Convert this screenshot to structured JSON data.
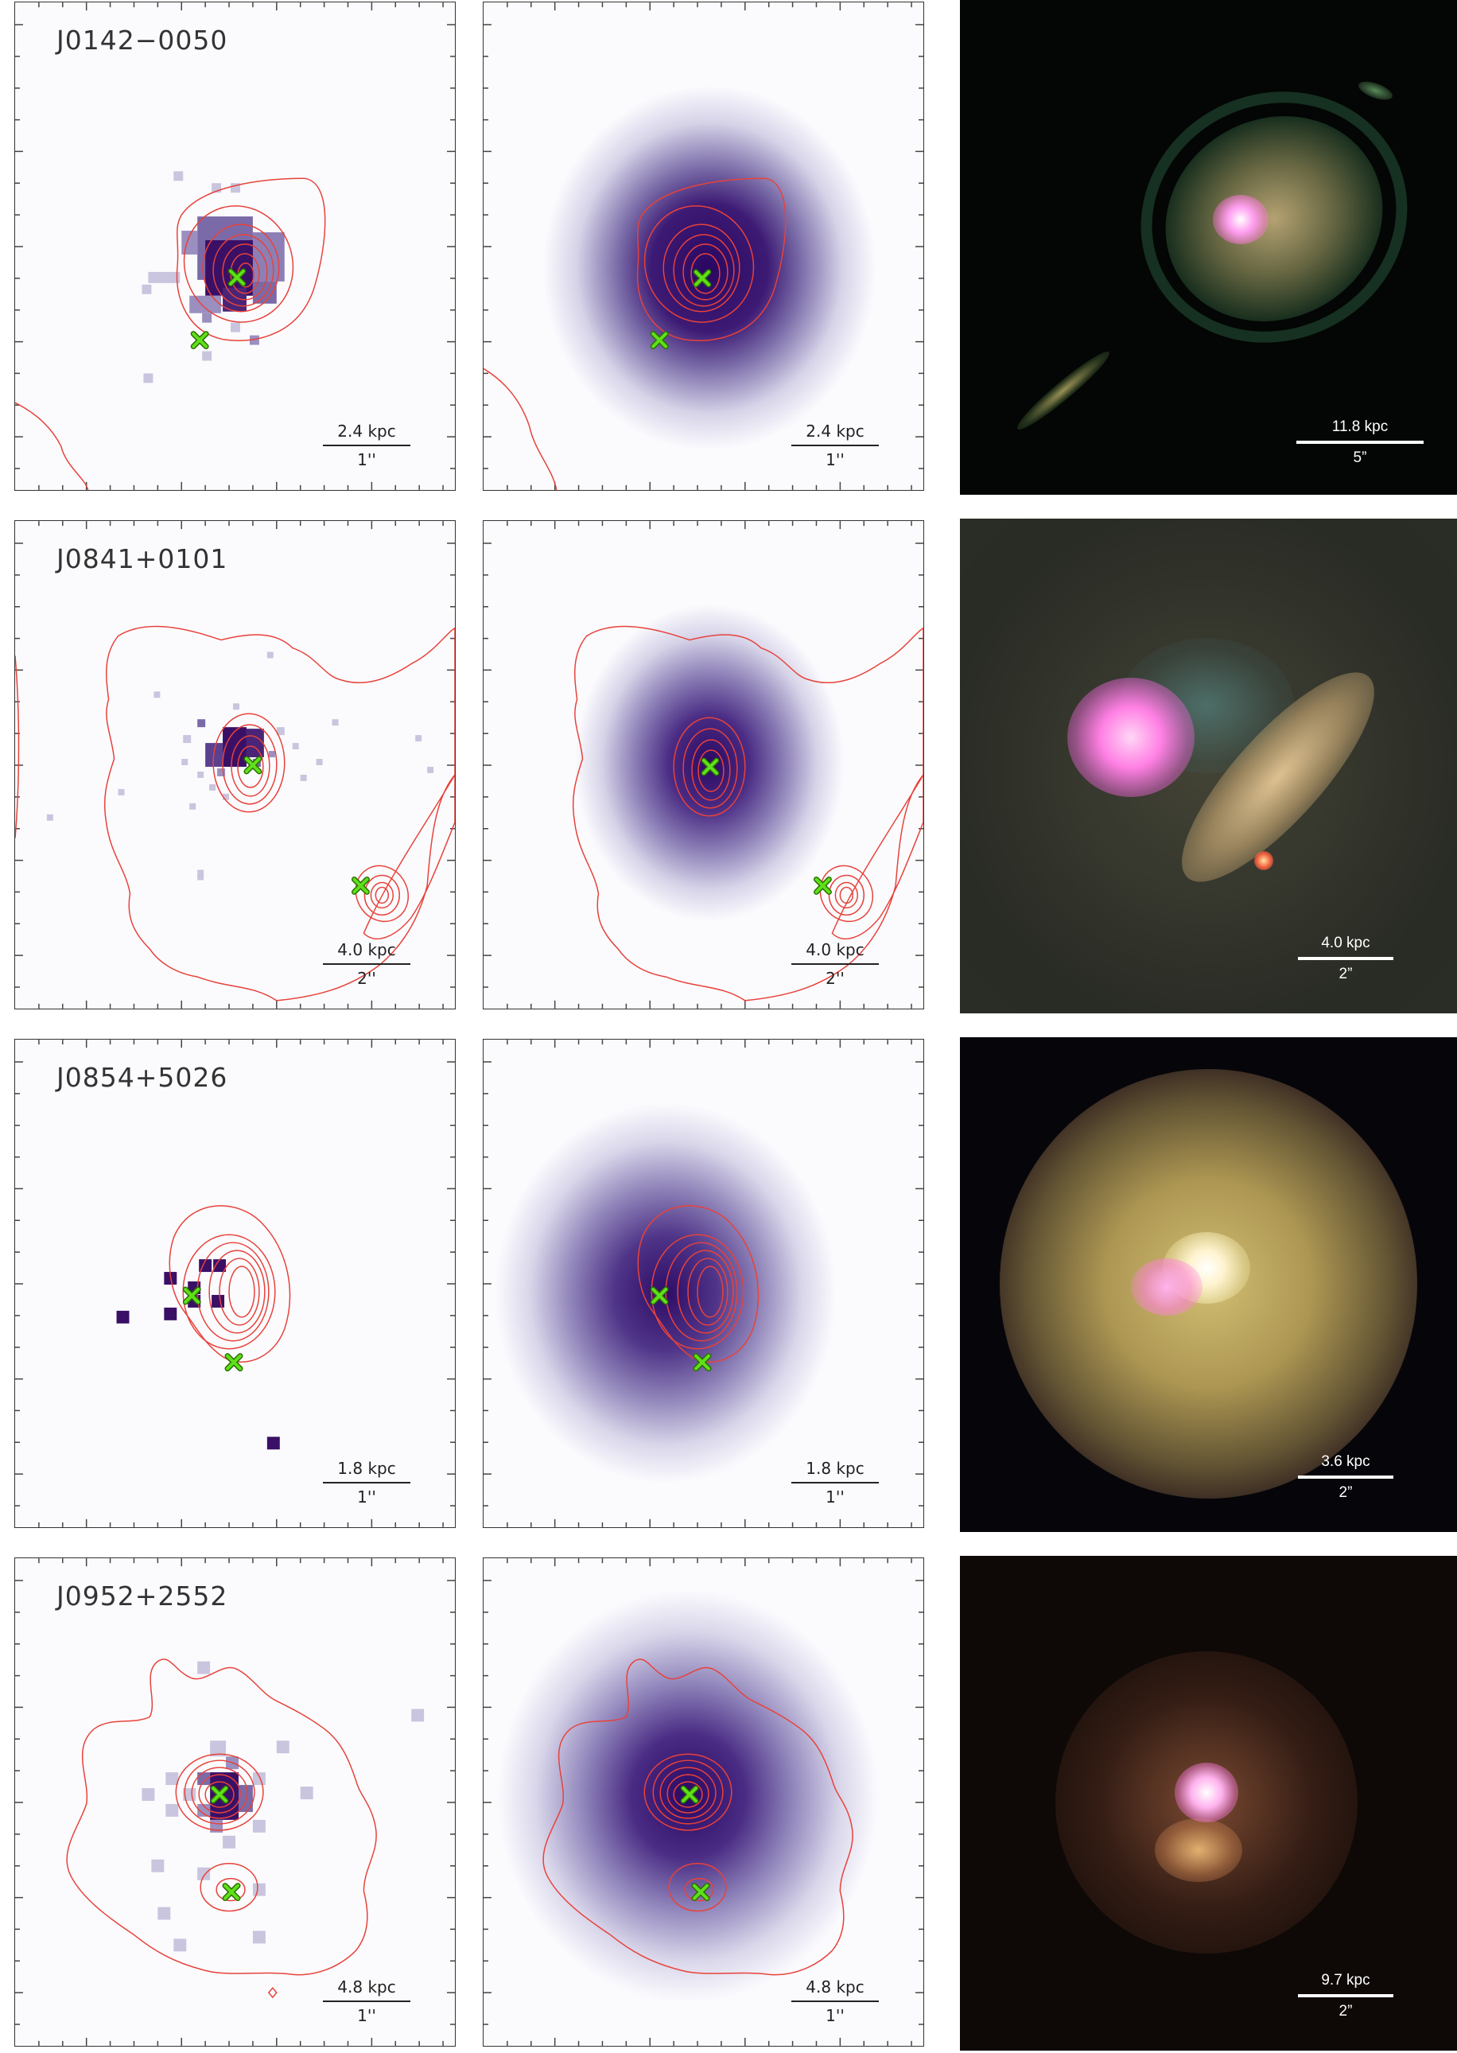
{
  "figure": {
    "rows": [
      {
        "id": "J0142-0050",
        "label": "J0142−0050",
        "phys_scale": "2.4 kpc",
        "ang_scale": "1''",
        "photo_phys_scale": "11.8 kpc",
        "photo_ang_scale": "5”"
      },
      {
        "id": "J0841+0101",
        "label": "J0841+0101",
        "phys_scale": "4.0 kpc",
        "ang_scale": "2''",
        "photo_phys_scale": "4.0 kpc",
        "photo_ang_scale": "2”"
      },
      {
        "id": "J0854+5026",
        "label": "J0854+5026",
        "phys_scale": "1.8 kpc",
        "ang_scale": "1''",
        "photo_phys_scale": "3.6 kpc",
        "photo_ang_scale": "2”"
      },
      {
        "id": "J0952+2552",
        "label": "J0952+2552",
        "phys_scale": "4.8 kpc",
        "ang_scale": "1''",
        "photo_phys_scale": "9.7 kpc",
        "photo_ang_scale": "2”"
      }
    ],
    "colors": {
      "contour": "#e8423a",
      "marker": "#5fe01a",
      "pixel_dark": "#3a1066",
      "pixel_mid": "#7b6aa8",
      "pixel_light": "#c9c5de",
      "background": "#fbfbfe"
    },
    "icons": {
      "source_marker": "x-cross-icon"
    }
  }
}
